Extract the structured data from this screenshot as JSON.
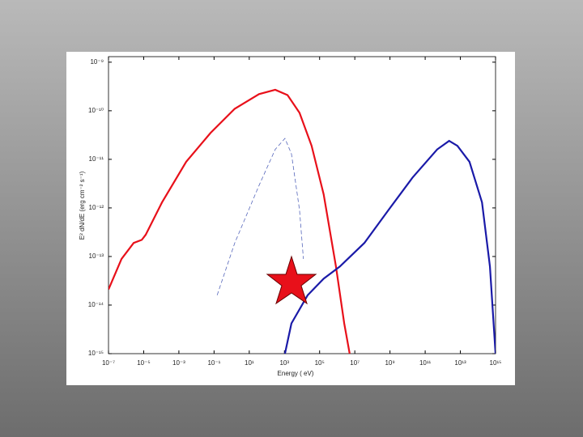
{
  "chart_data": {
    "type": "line",
    "log_x": true,
    "log_y": true,
    "x_label": "Energy  ( eV)",
    "y_label": "E² dN/dE  (erg cm⁻² s⁻¹)",
    "xlim": [
      1e-07,
      1000000000000000.0
    ],
    "ylim": [
      1e-15,
      1.3e-09
    ],
    "xticks": [
      {
        "value": 1e-07,
        "label": "10⁻⁷"
      },
      {
        "value": 1e-05,
        "label": "10⁻⁵"
      },
      {
        "value": 0.001,
        "label": "10⁻³"
      },
      {
        "value": 0.1,
        "label": "10⁻¹"
      },
      {
        "value": 10,
        "label": "10¹"
      },
      {
        "value": 1000,
        "label": "10³"
      },
      {
        "value": 100000.0,
        "label": "10⁵"
      },
      {
        "value": 10000000.0,
        "label": "10⁷"
      },
      {
        "value": 1000000000.0,
        "label": "10⁹"
      },
      {
        "value": 100000000000.0,
        "label": "10¹¹"
      },
      {
        "value": 10000000000000.0,
        "label": "10¹³"
      },
      {
        "value": 1000000000000000.0,
        "label": "10¹⁵"
      }
    ],
    "yticks": [
      {
        "value": 1e-15,
        "label": "10⁻¹⁵"
      },
      {
        "value": 1e-14,
        "label": "10⁻¹⁴"
      },
      {
        "value": 1e-13,
        "label": "10⁻¹³"
      },
      {
        "value": 1e-12,
        "label": "10⁻¹²"
      },
      {
        "value": 1e-11,
        "label": "10⁻¹¹"
      },
      {
        "value": 1e-10,
        "label": "10⁻¹⁰"
      },
      {
        "value": 1e-09,
        "label": "10⁻⁹"
      }
    ],
    "series": [
      {
        "color": "#e8101a",
        "style": "solid",
        "x": [
          1e-07,
          5.5e-07,
          2.7e-06,
          7.8e-06,
          1.3e-05,
          0.00011,
          0.0026,
          0.063,
          1.5,
          36,
          300,
          1500,
          7200,
          35000.0,
          170000.0,
          850000.0,
          2500000.0,
          5100000.0
        ],
        "values": [
          2.1e-14,
          8.9e-14,
          1.9e-13,
          2.2e-13,
          2.8e-13,
          1.3e-12,
          8.9e-12,
          3.5e-11,
          1.1e-10,
          2.2e-10,
          2.7e-10,
          2.1e-10,
          9.1e-11,
          1.9e-11,
          1.9e-12,
          6.2e-14,
          4.2e-15,
          1e-15
        ]
      },
      {
        "color": "#1a1aa8",
        "style": "solid",
        "x": [
          1070,
          2500,
          21000.0,
          170000.0,
          1400000.0,
          35000000.0,
          830000000.0,
          20000000000.0,
          480000000000.0,
          2300000000000.0,
          6800000000000.0,
          33000000000000.0,
          170000000000000.0,
          480000000000000.0,
          1000000000000000.0
        ],
        "values": [
          1e-15,
          4.2e-15,
          1.6e-14,
          3.5e-14,
          6.2e-14,
          1.9e-13,
          9.1e-13,
          4.3e-12,
          1.6e-11,
          2.4e-11,
          1.9e-11,
          8.9e-12,
          1.3e-12,
          6.2e-14,
          1e-15
        ]
      },
      {
        "color": "#5566bb",
        "style": "dashed",
        "x": [
          0.15,
          1.5,
          36,
          300,
          1070,
          2500,
          7200,
          12000.0
        ],
        "values": [
          1.6e-14,
          1.9e-13,
          2.9e-12,
          1.6e-11,
          2.7e-11,
          1.3e-11,
          9.1e-13,
          8.9e-14
        ]
      }
    ]
  }
}
